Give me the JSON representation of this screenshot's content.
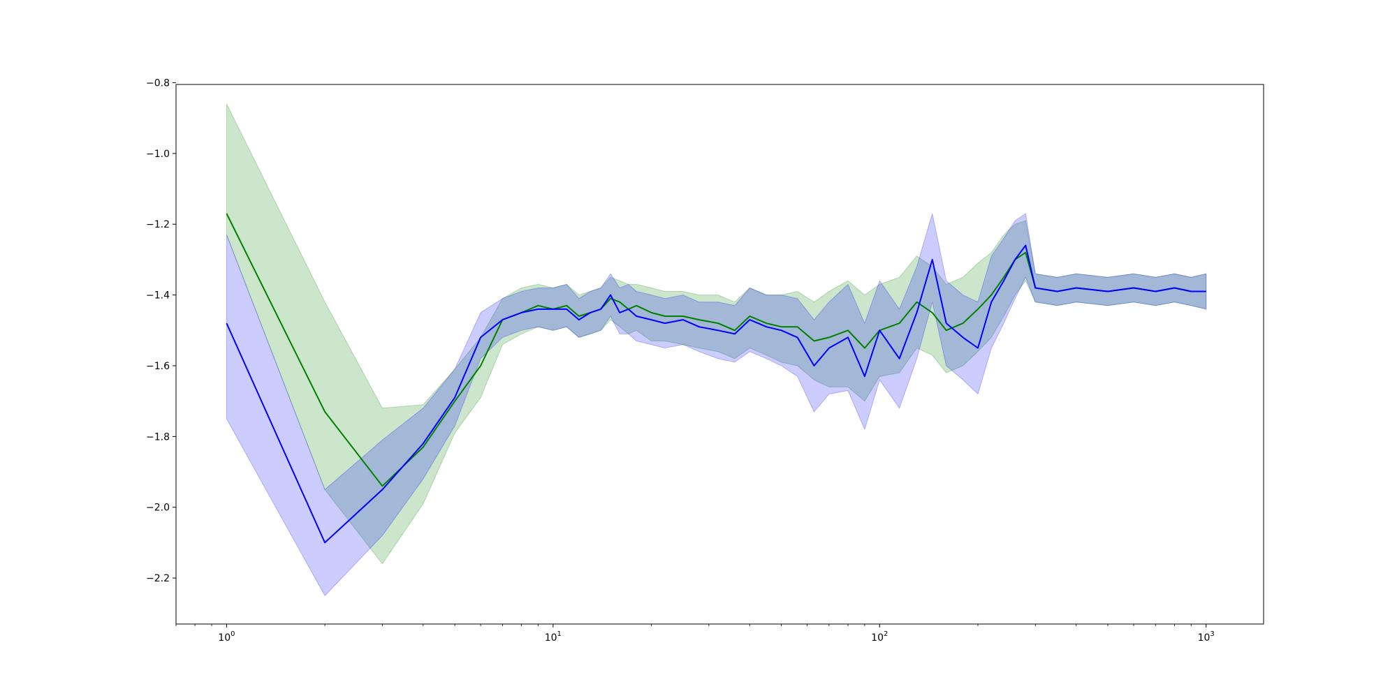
{
  "chart_data": {
    "type": "line",
    "title": "",
    "xlabel": "",
    "ylabel": "",
    "xscale": "log",
    "xlim": [
      0.7,
      1500
    ],
    "ylim": [
      -2.33,
      -0.805
    ],
    "grid": false,
    "colors": {
      "green": "#008000",
      "blue": "#0000ff"
    },
    "y_ticks": [
      "−2.2",
      "−2.0",
      "−1.8",
      "−1.6",
      "−1.4",
      "−1.2",
      "−1.0",
      "−0.8"
    ],
    "y_tick_values": [
      -2.2,
      -2.0,
      -1.8,
      -1.6,
      -1.4,
      -1.2,
      -1.0,
      -0.8
    ],
    "x_ticks": [
      {
        "base": "10",
        "exp": "0"
      },
      {
        "base": "10",
        "exp": "1"
      },
      {
        "base": "10",
        "exp": "2"
      },
      {
        "base": "10",
        "exp": "3"
      }
    ],
    "x_tick_values": [
      1,
      10,
      100,
      1000
    ],
    "series": [
      {
        "color": "green",
        "x": [
          1,
          2,
          3,
          4,
          5,
          6,
          7,
          8,
          9,
          10,
          11,
          12,
          13,
          14,
          15,
          16,
          17,
          18,
          20,
          22,
          25,
          28,
          32,
          36,
          40,
          45,
          50,
          56,
          63,
          70,
          80,
          90,
          100,
          115,
          130,
          145,
          160,
          180,
          200,
          220,
          240,
          260,
          280,
          300,
          350,
          400,
          500,
          600,
          700,
          800,
          900,
          1000
        ],
        "mean": [
          -1.17,
          -1.73,
          -1.94,
          -1.83,
          -1.7,
          -1.6,
          -1.47,
          -1.45,
          -1.43,
          -1.44,
          -1.43,
          -1.46,
          -1.45,
          -1.44,
          -1.41,
          -1.42,
          -1.44,
          -1.43,
          -1.45,
          -1.46,
          -1.46,
          -1.47,
          -1.48,
          -1.5,
          -1.46,
          -1.48,
          -1.49,
          -1.49,
          -1.53,
          -1.52,
          -1.5,
          -1.55,
          -1.5,
          -1.48,
          -1.42,
          -1.45,
          -1.5,
          -1.48,
          -1.44,
          -1.4,
          -1.35,
          -1.3,
          -1.28,
          -1.38,
          -1.39,
          -1.38,
          -1.39,
          -1.38,
          -1.39,
          -1.38,
          -1.39,
          -1.39
        ],
        "lower": [
          -1.23,
          -1.95,
          -2.16,
          -1.99,
          -1.79,
          -1.69,
          -1.54,
          -1.51,
          -1.49,
          -1.5,
          -1.49,
          -1.52,
          -1.51,
          -1.5,
          -1.47,
          -1.49,
          -1.51,
          -1.5,
          -1.53,
          -1.53,
          -1.54,
          -1.55,
          -1.56,
          -1.58,
          -1.55,
          -1.57,
          -1.59,
          -1.6,
          -1.64,
          -1.66,
          -1.66,
          -1.7,
          -1.63,
          -1.62,
          -1.55,
          -1.57,
          -1.62,
          -1.6,
          -1.56,
          -1.52,
          -1.46,
          -1.4,
          -1.36,
          -1.42,
          -1.43,
          -1.42,
          -1.43,
          -1.42,
          -1.43,
          -1.42,
          -1.43,
          -1.44
        ],
        "upper": [
          -0.86,
          -1.42,
          -1.72,
          -1.71,
          -1.61,
          -1.52,
          -1.41,
          -1.38,
          -1.37,
          -1.38,
          -1.37,
          -1.4,
          -1.39,
          -1.38,
          -1.35,
          -1.36,
          -1.37,
          -1.37,
          -1.38,
          -1.39,
          -1.39,
          -1.4,
          -1.4,
          -1.42,
          -1.38,
          -1.4,
          -1.4,
          -1.39,
          -1.42,
          -1.39,
          -1.36,
          -1.4,
          -1.37,
          -1.35,
          -1.29,
          -1.32,
          -1.37,
          -1.35,
          -1.31,
          -1.28,
          -1.23,
          -1.2,
          -1.19,
          -1.34,
          -1.35,
          -1.34,
          -1.35,
          -1.34,
          -1.35,
          -1.34,
          -1.35,
          -1.34
        ]
      },
      {
        "color": "blue",
        "x": [
          1,
          2,
          3,
          4,
          5,
          6,
          7,
          8,
          9,
          10,
          11,
          12,
          13,
          14,
          15,
          16,
          17,
          18,
          20,
          22,
          25,
          28,
          32,
          36,
          40,
          45,
          50,
          56,
          63,
          70,
          80,
          90,
          100,
          115,
          130,
          145,
          160,
          180,
          200,
          220,
          240,
          260,
          280,
          300,
          350,
          400,
          500,
          600,
          700,
          800,
          900,
          1000
        ],
        "mean": [
          -1.48,
          -2.1,
          -1.95,
          -1.82,
          -1.69,
          -1.52,
          -1.47,
          -1.45,
          -1.44,
          -1.44,
          -1.44,
          -1.47,
          -1.45,
          -1.44,
          -1.4,
          -1.45,
          -1.44,
          -1.46,
          -1.47,
          -1.48,
          -1.47,
          -1.49,
          -1.5,
          -1.51,
          -1.47,
          -1.49,
          -1.5,
          -1.52,
          -1.6,
          -1.55,
          -1.52,
          -1.63,
          -1.5,
          -1.58,
          -1.45,
          -1.3,
          -1.48,
          -1.52,
          -1.55,
          -1.42,
          -1.36,
          -1.3,
          -1.26,
          -1.38,
          -1.39,
          -1.38,
          -1.39,
          -1.38,
          -1.39,
          -1.38,
          -1.39,
          -1.39
        ],
        "lower": [
          -1.75,
          -2.25,
          -2.08,
          -1.92,
          -1.77,
          -1.58,
          -1.52,
          -1.5,
          -1.49,
          -1.5,
          -1.49,
          -1.52,
          -1.51,
          -1.5,
          -1.46,
          -1.51,
          -1.51,
          -1.53,
          -1.54,
          -1.55,
          -1.54,
          -1.56,
          -1.58,
          -1.59,
          -1.56,
          -1.58,
          -1.6,
          -1.63,
          -1.73,
          -1.68,
          -1.67,
          -1.78,
          -1.64,
          -1.72,
          -1.58,
          -1.42,
          -1.6,
          -1.64,
          -1.68,
          -1.55,
          -1.48,
          -1.41,
          -1.35,
          -1.42,
          -1.43,
          -1.42,
          -1.43,
          -1.42,
          -1.43,
          -1.42,
          -1.43,
          -1.44
        ],
        "upper": [
          -1.23,
          -1.95,
          -1.81,
          -1.72,
          -1.61,
          -1.45,
          -1.41,
          -1.39,
          -1.38,
          -1.38,
          -1.37,
          -1.41,
          -1.39,
          -1.38,
          -1.34,
          -1.38,
          -1.37,
          -1.39,
          -1.4,
          -1.41,
          -1.4,
          -1.42,
          -1.42,
          -1.43,
          -1.38,
          -1.4,
          -1.4,
          -1.41,
          -1.47,
          -1.42,
          -1.37,
          -1.48,
          -1.36,
          -1.44,
          -1.32,
          -1.17,
          -1.36,
          -1.4,
          -1.42,
          -1.29,
          -1.24,
          -1.19,
          -1.17,
          -1.34,
          -1.35,
          -1.34,
          -1.35,
          -1.34,
          -1.35,
          -1.34,
          -1.35,
          -1.34
        ]
      }
    ]
  }
}
